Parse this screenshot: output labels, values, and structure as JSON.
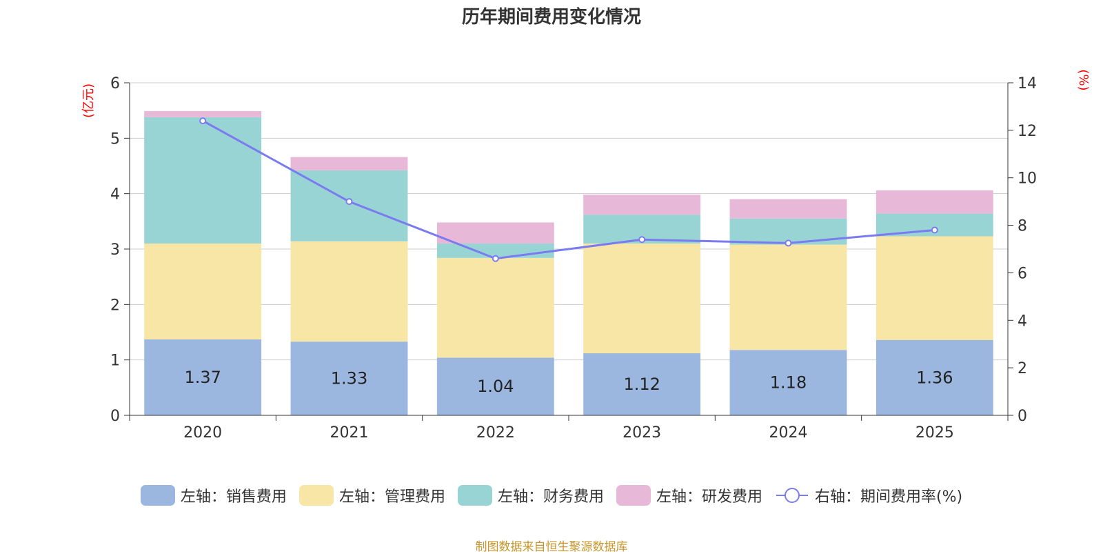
{
  "chart_data": {
    "type": "bar",
    "stacked": true,
    "title": "历年期间费用变化情况",
    "categories": [
      "2020",
      "2021",
      "2022",
      "2023",
      "2024",
      "2025"
    ],
    "series": [
      {
        "name": "左轴：销售费用",
        "axis": "left",
        "color": "#9bb7e0",
        "values": [
          1.37,
          1.33,
          1.04,
          1.12,
          1.18,
          1.36
        ],
        "show_labels": true
      },
      {
        "name": "左轴：管理费用",
        "axis": "left",
        "color": "#f7e6a6",
        "values": [
          1.73,
          1.81,
          1.8,
          1.98,
          1.9,
          1.87
        ],
        "show_labels": false
      },
      {
        "name": "左轴：财务费用",
        "axis": "left",
        "color": "#98d4d4",
        "values": [
          2.28,
          1.28,
          0.26,
          0.52,
          0.47,
          0.41
        ],
        "show_labels": false
      },
      {
        "name": "左轴：研发费用",
        "axis": "left",
        "color": "#e8b8d8",
        "values": [
          0.11,
          0.24,
          0.38,
          0.36,
          0.35,
          0.42
        ],
        "show_labels": false
      }
    ],
    "line_series": {
      "name": "右轴：期间费用率(%)",
      "axis": "right",
      "color": "#7b7bf0",
      "values": [
        12.4,
        9.0,
        6.6,
        7.4,
        7.25,
        7.8
      ]
    },
    "left_axis": {
      "unit_label": "(亿元)",
      "ylim": [
        0,
        6
      ],
      "ticks": [
        "0",
        "1",
        "2",
        "3",
        "4",
        "5",
        "6"
      ]
    },
    "right_axis": {
      "unit_label": "(%)",
      "ylim": [
        0,
        14
      ],
      "ticks": [
        "0",
        "2",
        "4",
        "6",
        "8",
        "10",
        "12",
        "14"
      ]
    },
    "grid": true,
    "legend_position": "bottom-center"
  },
  "footer": {
    "source": "制图数据来自恒生聚源数据库"
  }
}
